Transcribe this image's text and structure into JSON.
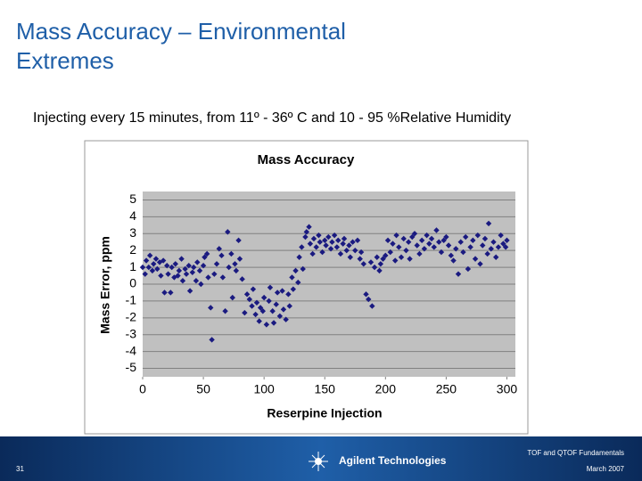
{
  "slide": {
    "title_lines": [
      "Mass Accuracy – Environmental",
      "Extremes"
    ],
    "subtitle": "Injecting every 15 minutes, from 11º - 36º C and 10 - 95 %Relative Humidity",
    "footer_course": "TOF and QTOF Fundamentals",
    "page_number": "31",
    "company": "Agilent Technologies",
    "date": "March 2007"
  },
  "chart_data": {
    "type": "scatter",
    "title": "Mass Accuracy",
    "x_label": "Reserpine Injection",
    "y_label": "Mass Error, ppm",
    "color": "#1a1a80",
    "grid": true,
    "xlim": [
      0,
      307
    ],
    "ylim": [
      -5.5,
      5.5
    ],
    "xticks": [
      0,
      50,
      100,
      150,
      200,
      250,
      300
    ],
    "yticks": [
      -5,
      -4,
      -3,
      -2,
      -1,
      0,
      1,
      2,
      3,
      4,
      5
    ],
    "x": [
      0,
      2,
      3,
      5,
      6,
      8,
      9,
      11,
      12,
      14,
      15,
      17,
      18,
      20,
      21,
      23,
      24,
      26,
      27,
      29,
      30,
      32,
      33,
      35,
      36,
      38,
      39,
      41,
      42,
      44,
      45,
      47,
      48,
      50,
      51,
      53,
      54,
      56,
      57,
      59,
      61,
      63,
      65,
      66,
      68,
      70,
      71,
      73,
      74,
      76,
      77,
      79,
      80,
      82,
      84,
      86,
      88,
      90,
      91,
      93,
      94,
      96,
      97,
      99,
      100,
      102,
      104,
      105,
      107,
      108,
      110,
      111,
      113,
      115,
      116,
      118,
      120,
      121,
      123,
      124,
      126,
      128,
      129,
      131,
      132,
      134,
      135,
      137,
      138,
      140,
      141,
      143,
      145,
      146,
      148,
      150,
      151,
      153,
      155,
      156,
      158,
      160,
      161,
      163,
      165,
      166,
      168,
      170,
      171,
      173,
      175,
      177,
      179,
      180,
      182,
      184,
      186,
      188,
      189,
      191,
      193,
      195,
      196,
      198,
      200,
      202,
      204,
      206,
      208,
      209,
      211,
      213,
      215,
      217,
      219,
      220,
      222,
      224,
      226,
      228,
      230,
      232,
      234,
      236,
      238,
      240,
      242,
      244,
      246,
      248,
      250,
      252,
      254,
      256,
      258,
      260,
      262,
      264,
      266,
      268,
      270,
      272,
      274,
      276,
      278,
      280,
      282,
      284,
      285,
      287,
      289,
      291,
      293,
      295,
      297,
      299,
      300
    ],
    "values": [
      1.0,
      0.6,
      1.4,
      1.0,
      1.7,
      0.8,
      1.2,
      1.5,
      0.9,
      1.3,
      0.5,
      1.4,
      -0.5,
      1.1,
      0.6,
      -0.5,
      1.0,
      0.4,
      1.2,
      0.5,
      0.8,
      1.5,
      0.2,
      0.9,
      0.6,
      1.1,
      -0.4,
      0.7,
      1.0,
      0.2,
      1.3,
      0.8,
      0.0,
      1.1,
      1.6,
      1.8,
      0.4,
      -1.4,
      -3.3,
      0.6,
      1.2,
      2.1,
      1.7,
      0.4,
      -1.6,
      3.1,
      1.0,
      1.8,
      -0.8,
      1.2,
      0.8,
      2.6,
      1.5,
      0.3,
      -1.7,
      -0.6,
      -0.9,
      -1.3,
      -0.3,
      -1.8,
      -1.1,
      -2.2,
      -1.4,
      -1.6,
      -0.8,
      -2.4,
      -1.0,
      -0.2,
      -1.6,
      -2.3,
      -1.2,
      -0.5,
      -1.9,
      -0.4,
      -1.5,
      -2.1,
      -0.6,
      -1.3,
      0.4,
      -0.3,
      0.8,
      0.1,
      1.6,
      2.2,
      0.9,
      2.8,
      3.1,
      3.4,
      2.4,
      1.8,
      2.7,
      2.2,
      2.9,
      2.5,
      1.9,
      2.6,
      2.3,
      2.8,
      2.1,
      2.5,
      2.9,
      2.2,
      2.6,
      1.8,
      2.4,
      2.7,
      2.0,
      2.3,
      1.6,
      2.5,
      2.0,
      2.6,
      1.5,
      1.9,
      1.2,
      -0.6,
      -0.9,
      1.3,
      -1.3,
      1.0,
      1.6,
      0.8,
      1.2,
      1.5,
      1.7,
      2.6,
      1.9,
      2.4,
      1.4,
      2.9,
      2.2,
      1.6,
      2.7,
      2.0,
      2.5,
      1.5,
      2.8,
      3.0,
      2.3,
      1.8,
      2.6,
      2.1,
      2.9,
      2.4,
      2.7,
      2.2,
      3.2,
      2.5,
      1.9,
      2.6,
      2.8,
      2.3,
      1.7,
      1.4,
      2.1,
      0.6,
      2.5,
      1.9,
      2.8,
      0.9,
      2.2,
      2.6,
      1.5,
      2.9,
      1.2,
      2.3,
      2.7,
      1.8,
      3.6,
      2.1,
      2.5,
      1.6,
      2.2,
      2.9,
      2.4,
      2.2,
      2.6
    ]
  }
}
